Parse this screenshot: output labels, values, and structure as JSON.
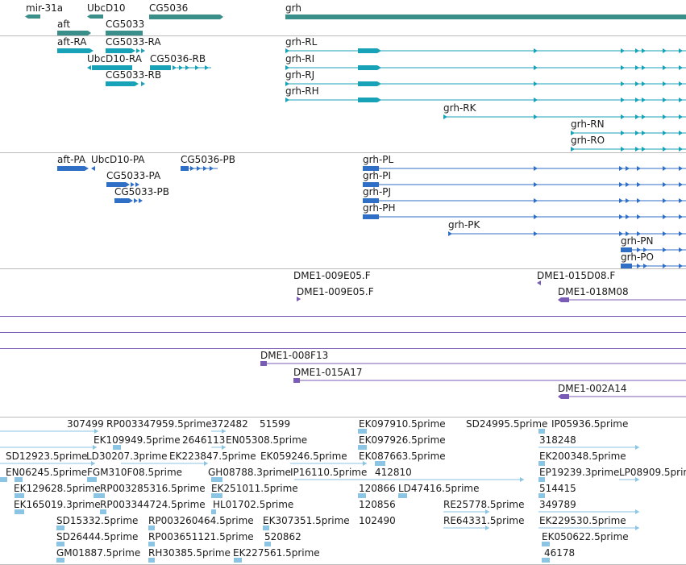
{
  "colors": {
    "gene": "#3b8f8a",
    "transcript": "#17a2b8",
    "protein": "#2f6fc6",
    "clone": "#7a5bb5",
    "est": "#8cc4e4",
    "divider": "#bbbbbb"
  },
  "sections": [
    {
      "name": "genes",
      "color_key": "gene",
      "features": [
        {
          "label": "mir-31a",
          "strand": "-"
        },
        {
          "label": "UbcD10",
          "strand": "-"
        },
        {
          "label": "CG5036",
          "strand": "+"
        },
        {
          "label": "grh",
          "strand": "+"
        },
        {
          "label": "aft",
          "strand": "+"
        },
        {
          "label": "CG5033",
          "strand": "+"
        }
      ]
    },
    {
      "name": "transcripts",
      "color_key": "transcript",
      "features": [
        {
          "label": "aft-RA"
        },
        {
          "label": "CG5033-RA"
        },
        {
          "label": "UbcD10-RA"
        },
        {
          "label": "CG5036-RB"
        },
        {
          "label": "CG5033-RB"
        },
        {
          "label": "grh-RL"
        },
        {
          "label": "grh-RI"
        },
        {
          "label": "grh-RJ"
        },
        {
          "label": "grh-RH"
        },
        {
          "label": "grh-RK"
        },
        {
          "label": "grh-RN"
        },
        {
          "label": "grh-RO"
        }
      ]
    },
    {
      "name": "proteins",
      "color_key": "protein",
      "features": [
        {
          "label": "aft-PA"
        },
        {
          "label": "UbcD10-PA"
        },
        {
          "label": "CG5036-PB"
        },
        {
          "label": "CG5033-PA"
        },
        {
          "label": "CG5033-PB"
        },
        {
          "label": "grh-PL"
        },
        {
          "label": "grh-PI"
        },
        {
          "label": "grh-PJ"
        },
        {
          "label": "grh-PH"
        },
        {
          "label": "grh-PK"
        },
        {
          "label": "grh-PN"
        },
        {
          "label": "grh-PO"
        }
      ]
    },
    {
      "name": "clones",
      "color_key": "clone",
      "features": [
        {
          "label": "DME1-009E05.F"
        },
        {
          "label": "DME1-009E05.F"
        },
        {
          "label": "DME1-015D08.F"
        },
        {
          "label": "DME1-018M08"
        },
        {
          "label": "DME1-008F13"
        },
        {
          "label": "DME1-015A17"
        },
        {
          "label": "DME1-002A14"
        }
      ]
    },
    {
      "name": "ests",
      "color_key": "est",
      "features": [
        {
          "label": "307499"
        },
        {
          "label": "RP003347959.5prime"
        },
        {
          "label": "372482"
        },
        {
          "label": "51599"
        },
        {
          "label": "EK097910.5prime"
        },
        {
          "label": "SD24995.5prime"
        },
        {
          "label": "IP05936.5prime"
        },
        {
          "label": "EK109949.5prime"
        },
        {
          "label": "2646113"
        },
        {
          "label": "EN05308.5prime"
        },
        {
          "label": "EK097926.5prime"
        },
        {
          "label": "318248"
        },
        {
          "label": "SD12923.5prime"
        },
        {
          "label": "LD30207.3prime"
        },
        {
          "label": "EK223847.5prime"
        },
        {
          "label": "EK059246.5prime"
        },
        {
          "label": "EK087663.5prime"
        },
        {
          "label": "EK200348.5prime"
        },
        {
          "label": "EN06245.5prime"
        },
        {
          "label": "FGM310F08.5prime"
        },
        {
          "label": "GH08788.3prime"
        },
        {
          "label": "IP16110.5prime"
        },
        {
          "label": "412810"
        },
        {
          "label": "EP19239.3prime"
        },
        {
          "label": "LP08909.5prime"
        },
        {
          "label": "EK129628.5prime"
        },
        {
          "label": "RP003285316.5prime"
        },
        {
          "label": "EK251011.5prime"
        },
        {
          "label": "120866"
        },
        {
          "label": "LD47416.5prime"
        },
        {
          "label": "514415"
        },
        {
          "label": "EK165019.3prime"
        },
        {
          "label": "RP003344724.5prime"
        },
        {
          "label": "HL01702.5prime"
        },
        {
          "label": "120856"
        },
        {
          "label": "RE25778.5prime"
        },
        {
          "label": "349789"
        },
        {
          "label": "SD15332.5prime"
        },
        {
          "label": "RP003260464.5prime"
        },
        {
          "label": "EK307351.5prime"
        },
        {
          "label": "102490"
        },
        {
          "label": "RE64331.5prime"
        },
        {
          "label": "EK229530.5prime"
        },
        {
          "label": "SD26444.5prime"
        },
        {
          "label": "RP003651121.5prime"
        },
        {
          "label": "520862"
        },
        {
          "label": "EK050622.5prime"
        },
        {
          "label": "GM01887.5prime"
        },
        {
          "label": "RH30385.5prime"
        },
        {
          "label": "EK227561.5prime"
        },
        {
          "label": "46178"
        }
      ]
    }
  ]
}
